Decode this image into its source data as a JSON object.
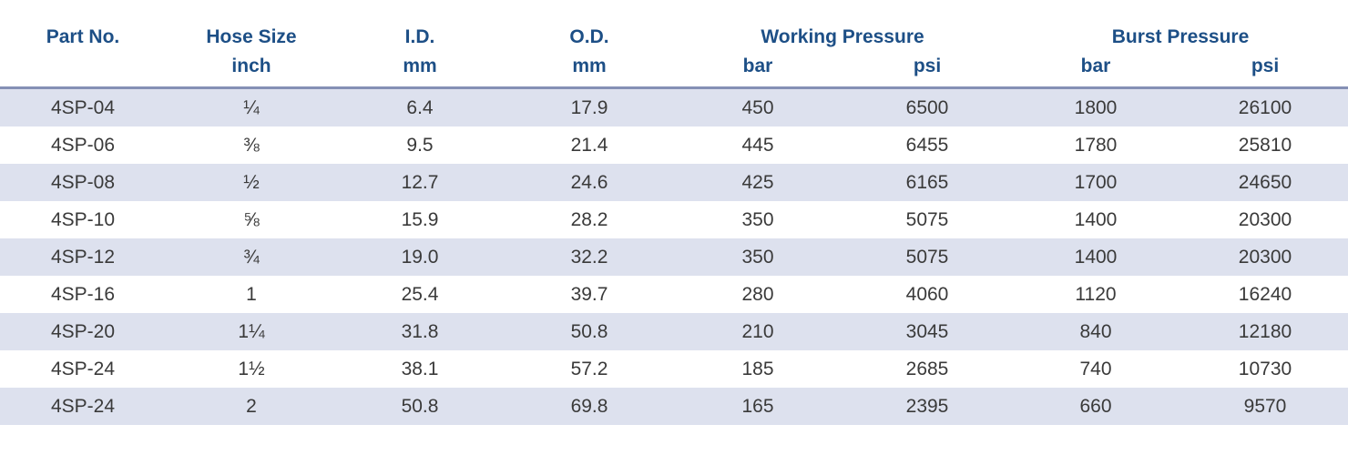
{
  "header": {
    "part_no": "Part No.",
    "hose_size": "Hose Size",
    "hose_size_unit": "inch",
    "id": "I.D.",
    "id_unit": "mm",
    "od": "O.D.",
    "od_unit": "mm",
    "working_pressure": "Working Pressure",
    "wp_bar": "bar",
    "wp_psi": "psi",
    "burst_pressure": "Burst Pressure",
    "bp_bar": "bar",
    "bp_psi": "psi"
  },
  "rows": [
    [
      "4SP-04",
      "¼",
      "6.4",
      "17.9",
      "450",
      "6500",
      "1800",
      "26100"
    ],
    [
      "4SP-06",
      "⅜",
      "9.5",
      "21.4",
      "445",
      "6455",
      "1780",
      "25810"
    ],
    [
      "4SP-08",
      "½",
      "12.7",
      "24.6",
      "425",
      "6165",
      "1700",
      "24650"
    ],
    [
      "4SP-10",
      "⅝",
      "15.9",
      "28.2",
      "350",
      "5075",
      "1400",
      "20300"
    ],
    [
      "4SP-12",
      "¾",
      "19.0",
      "32.2",
      "350",
      "5075",
      "1400",
      "20300"
    ],
    [
      "4SP-16",
      "1",
      "25.4",
      "39.7",
      "280",
      "4060",
      "1120",
      "16240"
    ],
    [
      "4SP-20",
      "1¼",
      "31.8",
      "50.8",
      "210",
      "3045",
      "840",
      "12180"
    ],
    [
      "4SP-24",
      "1½",
      "38.1",
      "57.2",
      "185",
      "2685",
      "740",
      "10730"
    ],
    [
      "4SP-24",
      "2",
      "50.8",
      "69.8",
      "165",
      "2395",
      "660",
      "9570"
    ]
  ]
}
